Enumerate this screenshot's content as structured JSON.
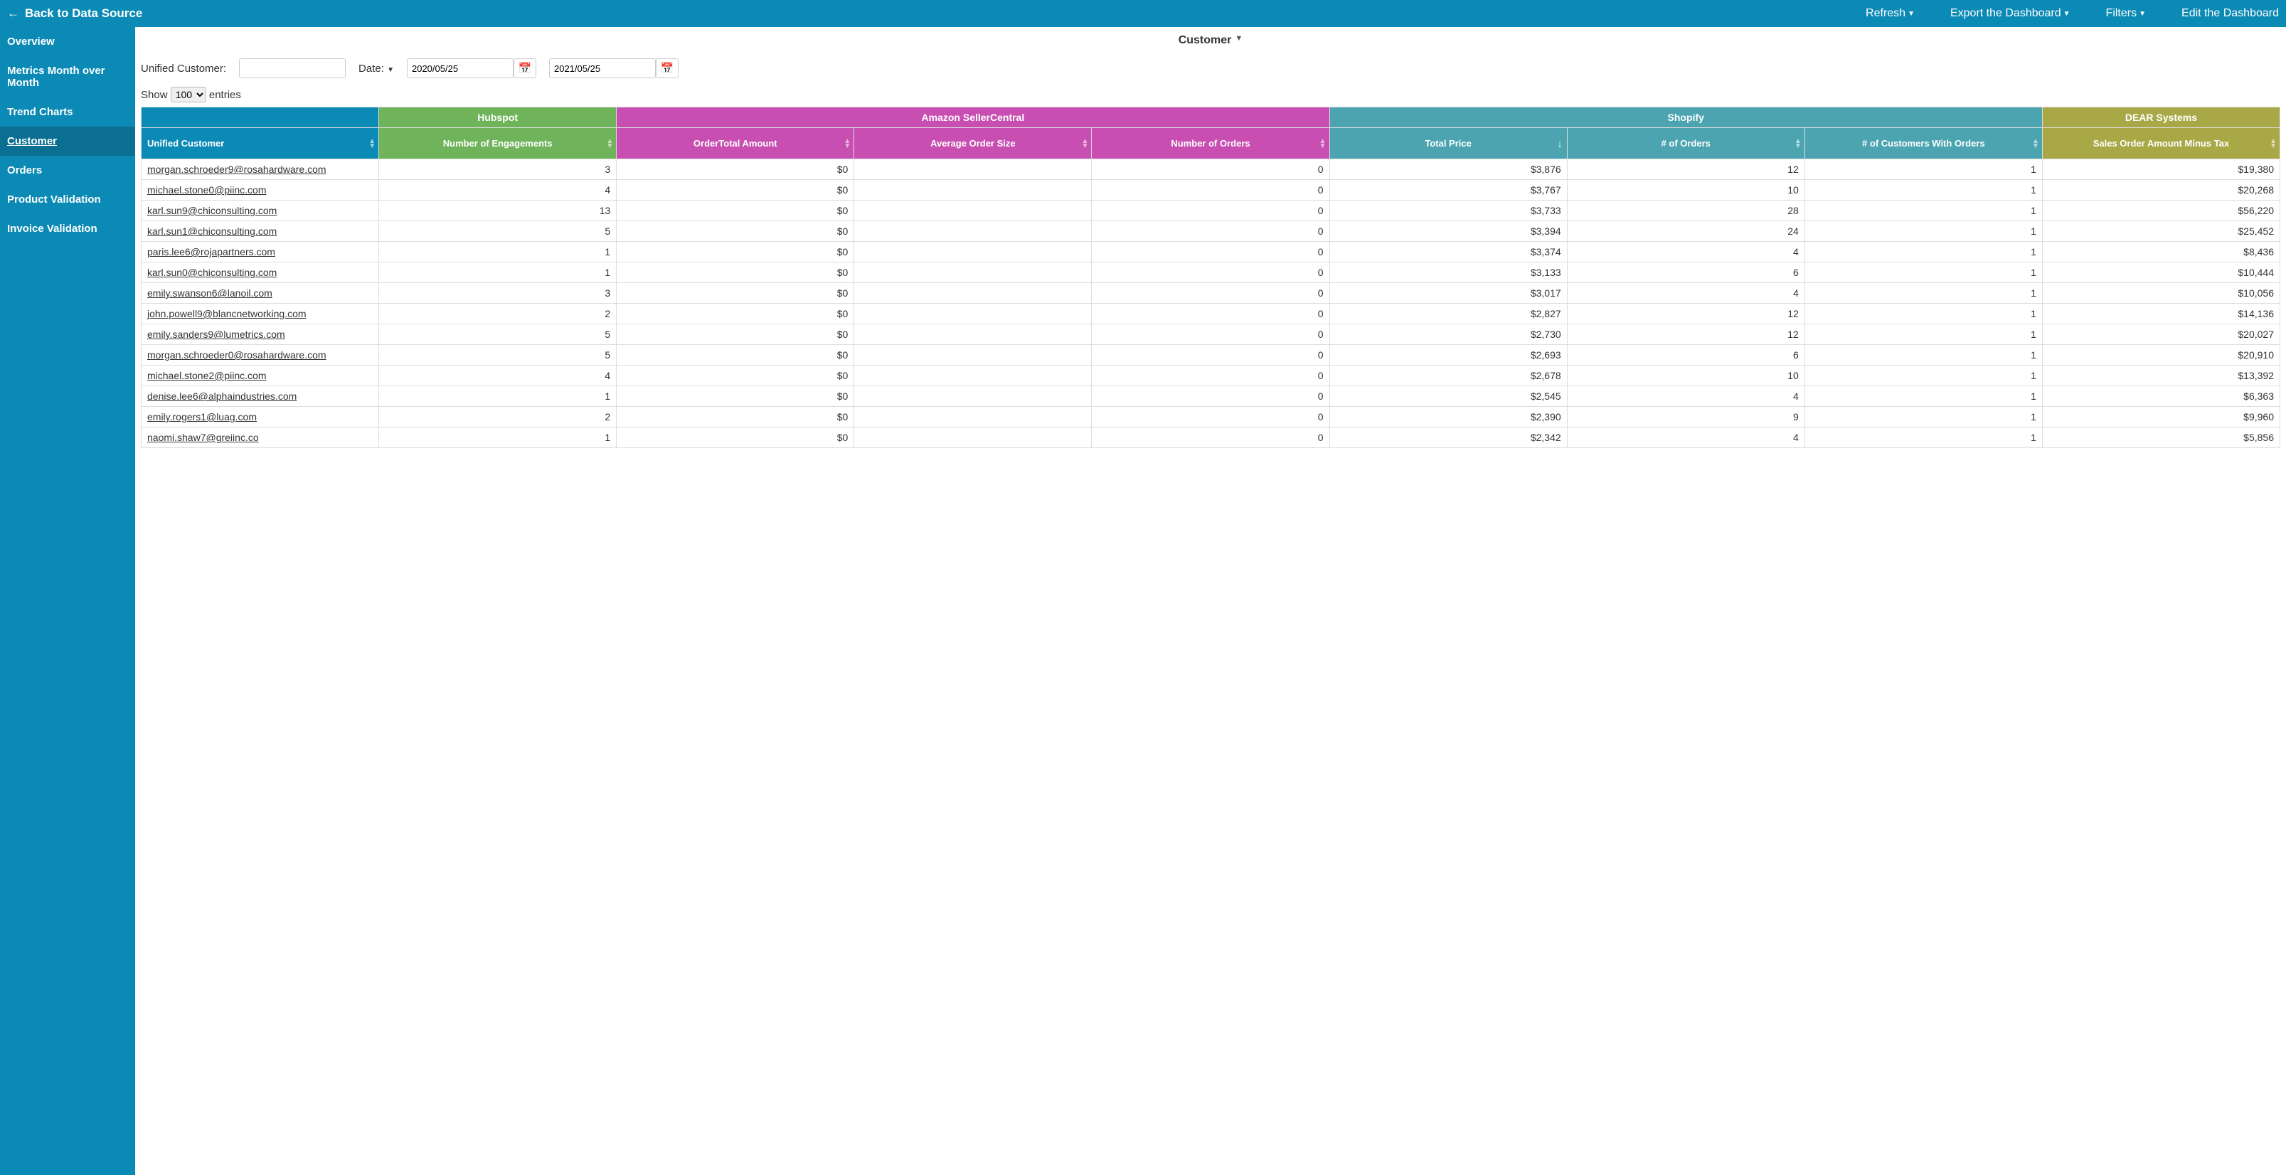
{
  "topbar": {
    "back_label": "Back to Data Source",
    "refresh": "Refresh",
    "export": "Export the Dashboard",
    "filters": "Filters",
    "edit": "Edit the Dashboard"
  },
  "sidebar": {
    "items": [
      {
        "label": "Overview",
        "active": false
      },
      {
        "label": "Metrics Month over Month",
        "active": false
      },
      {
        "label": "Trend Charts",
        "active": false
      },
      {
        "label": "Customer",
        "active": true
      },
      {
        "label": "Orders",
        "active": false
      },
      {
        "label": "Product Validation",
        "active": false
      },
      {
        "label": "Invoice Validation",
        "active": false
      }
    ]
  },
  "page": {
    "title": "Customer",
    "filters": {
      "uc_label": "Unified Customer:",
      "uc_value": "",
      "date_label": "Date:",
      "date_from": "2020/05/25",
      "date_to": "2021/05/25"
    },
    "show": {
      "prefix": "Show",
      "value": "100",
      "suffix": "entries"
    }
  },
  "table": {
    "groups": {
      "blank": "",
      "hubspot": "Hubspot",
      "amazon": "Amazon SellerCentral",
      "shopify": "Shopify",
      "dear": "DEAR Systems"
    },
    "columns": {
      "unified_customer": "Unified Customer",
      "engagements": "Number of Engagements",
      "ordertotal": "OrderTotal Amount",
      "avg_order": "Average Order Size",
      "num_orders": "Number of Orders",
      "total_price": "Total Price",
      "num_orders_shp": "# of Orders",
      "cust_with_orders": "# of Customers With Orders",
      "sales_minus_tax": "Sales Order Amount Minus Tax"
    },
    "rows": [
      {
        "customer": "morgan.schroeder9@rosahardware.com",
        "eng": "3",
        "ot": "$0",
        "avg": "",
        "no": "0",
        "tp": "$3,876",
        "nos": "12",
        "cwo": "1",
        "smt": "$19,380"
      },
      {
        "customer": "michael.stone0@piinc.com",
        "eng": "4",
        "ot": "$0",
        "avg": "",
        "no": "0",
        "tp": "$3,767",
        "nos": "10",
        "cwo": "1",
        "smt": "$20,268"
      },
      {
        "customer": "karl.sun9@chiconsulting.com",
        "eng": "13",
        "ot": "$0",
        "avg": "",
        "no": "0",
        "tp": "$3,733",
        "nos": "28",
        "cwo": "1",
        "smt": "$56,220"
      },
      {
        "customer": "karl.sun1@chiconsulting.com",
        "eng": "5",
        "ot": "$0",
        "avg": "",
        "no": "0",
        "tp": "$3,394",
        "nos": "24",
        "cwo": "1",
        "smt": "$25,452"
      },
      {
        "customer": "paris.lee6@rojapartners.com",
        "eng": "1",
        "ot": "$0",
        "avg": "",
        "no": "0",
        "tp": "$3,374",
        "nos": "4",
        "cwo": "1",
        "smt": "$8,436"
      },
      {
        "customer": "karl.sun0@chiconsulting.com",
        "eng": "1",
        "ot": "$0",
        "avg": "",
        "no": "0",
        "tp": "$3,133",
        "nos": "6",
        "cwo": "1",
        "smt": "$10,444"
      },
      {
        "customer": "emily.swanson6@lanoil.com",
        "eng": "3",
        "ot": "$0",
        "avg": "",
        "no": "0",
        "tp": "$3,017",
        "nos": "4",
        "cwo": "1",
        "smt": "$10,056"
      },
      {
        "customer": "john.powell9@blancnetworking.com",
        "eng": "2",
        "ot": "$0",
        "avg": "",
        "no": "0",
        "tp": "$2,827",
        "nos": "12",
        "cwo": "1",
        "smt": "$14,136"
      },
      {
        "customer": "emily.sanders9@lumetrics.com",
        "eng": "5",
        "ot": "$0",
        "avg": "",
        "no": "0",
        "tp": "$2,730",
        "nos": "12",
        "cwo": "1",
        "smt": "$20,027"
      },
      {
        "customer": "morgan.schroeder0@rosahardware.com",
        "eng": "5",
        "ot": "$0",
        "avg": "",
        "no": "0",
        "tp": "$2,693",
        "nos": "6",
        "cwo": "1",
        "smt": "$20,910"
      },
      {
        "customer": "michael.stone2@piinc.com",
        "eng": "4",
        "ot": "$0",
        "avg": "",
        "no": "0",
        "tp": "$2,678",
        "nos": "10",
        "cwo": "1",
        "smt": "$13,392"
      },
      {
        "customer": "denise.lee6@alphaindustries.com",
        "eng": "1",
        "ot": "$0",
        "avg": "",
        "no": "0",
        "tp": "$2,545",
        "nos": "4",
        "cwo": "1",
        "smt": "$6,363"
      },
      {
        "customer": "emily.rogers1@luag.com",
        "eng": "2",
        "ot": "$0",
        "avg": "",
        "no": "0",
        "tp": "$2,390",
        "nos": "9",
        "cwo": "1",
        "smt": "$9,960"
      },
      {
        "customer": "naomi.shaw7@greiinc.co",
        "eng": "1",
        "ot": "$0",
        "avg": "",
        "no": "0",
        "tp": "$2,342",
        "nos": "4",
        "cwo": "1",
        "smt": "$5,856"
      }
    ]
  },
  "colors": {
    "topbar_bg": "#0b8ab5",
    "sidebar_active_bg": "#0a6f92",
    "hubspot": "#6fb45a",
    "amazon": "#c84fb1",
    "shopify": "#4ba4b0",
    "dear": "#a8a847",
    "border": "#dddddd",
    "text": "#333333"
  }
}
